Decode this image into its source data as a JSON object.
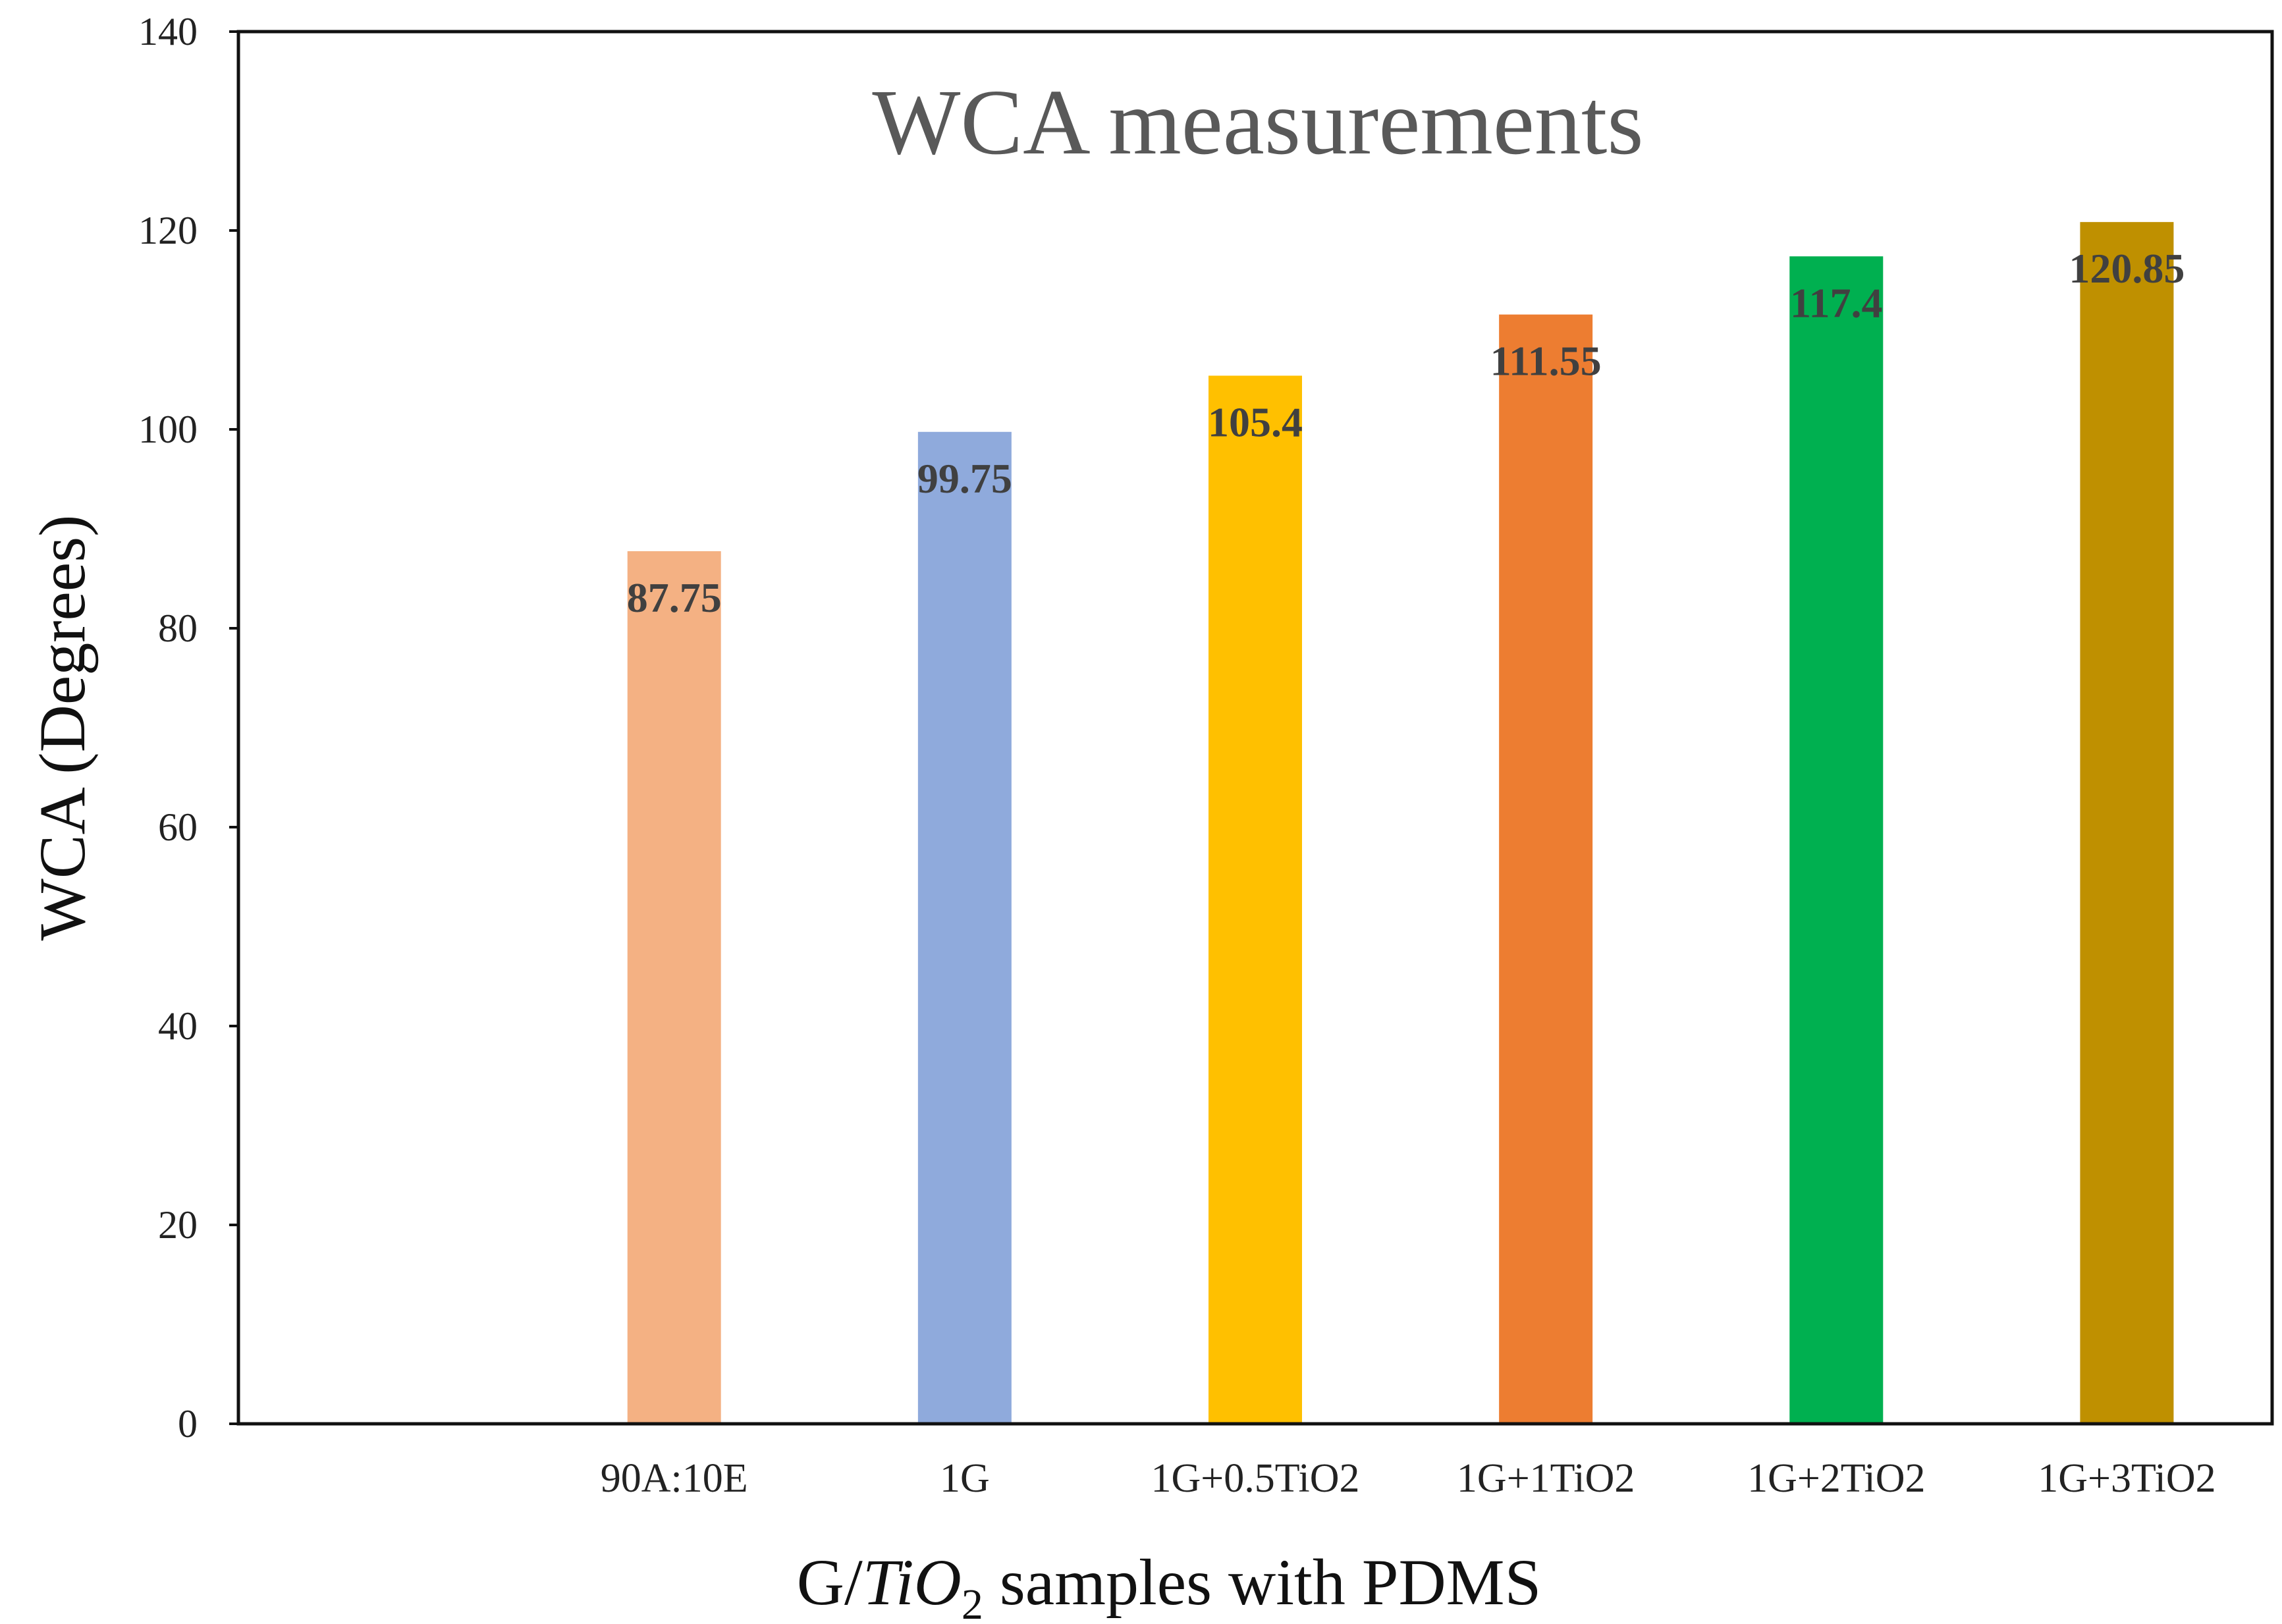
{
  "chart_data": {
    "type": "bar",
    "title": "WCA measurements",
    "xlabel": {
      "prefix": "G/",
      "math": "TiO",
      "subscript": "2",
      "suffix": " samples with PDMS"
    },
    "ylabel": "WCA (Degrees)",
    "ylim": [
      0,
      140
    ],
    "yticks": [
      0,
      20,
      40,
      60,
      80,
      100,
      120,
      140
    ],
    "ytick_labels": [
      "0",
      "20",
      "40",
      "60",
      "80",
      "100",
      "120",
      "140"
    ],
    "categories": [
      "",
      "90A:10E",
      "1G",
      "1G+0.5TiO2",
      "1G+1TiO2",
      "1G+2TiO2",
      "1G+3TiO2"
    ],
    "values": [
      null,
      87.75,
      99.75,
      105.4,
      111.55,
      117.4,
      120.85
    ],
    "data_labels": [
      "",
      "87.75",
      "99.75",
      "105.4",
      "111.55",
      "117.4",
      "120.85"
    ],
    "colors": [
      "#ffffff",
      "#F4B183",
      "#8FAADC",
      "#FFC000",
      "#ED7D31",
      "#00B050",
      "#BF9000"
    ],
    "grid": false,
    "legend": "none"
  }
}
